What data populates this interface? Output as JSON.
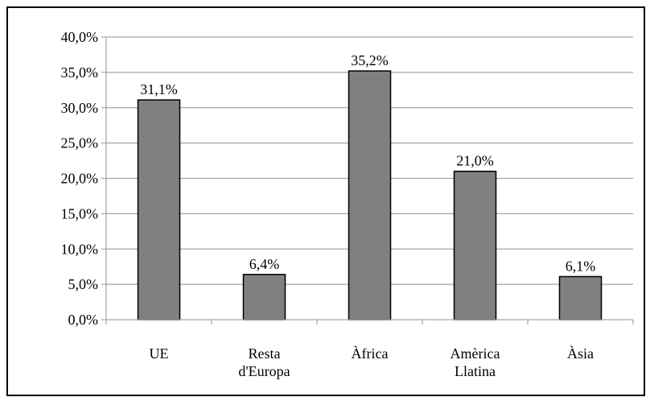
{
  "chart_data": {
    "type": "bar",
    "categories": [
      [
        "UE"
      ],
      [
        "Resta",
        "d'Europa"
      ],
      [
        "Àfrica"
      ],
      [
        "Amèrica",
        "Llatina"
      ],
      [
        "Àsia"
      ]
    ],
    "values": [
      31.1,
      6.4,
      35.2,
      21.0,
      6.1
    ],
    "value_labels": [
      "31,1%",
      "6,4%",
      "35,2%",
      "21,0%",
      "6,1%"
    ],
    "y_ticks": [
      "0,0%",
      "5,0%",
      "10,0%",
      "15,0%",
      "20,0%",
      "25,0%",
      "30,0%",
      "35,0%",
      "40,0%"
    ],
    "ylim": [
      0,
      40
    ],
    "y_step": 5,
    "grid": true,
    "title": "",
    "xlabel": "",
    "ylabel": "",
    "colors": {
      "bar_fill": "#808080",
      "bar_stroke": "#000000",
      "grid": "#a6a6a6",
      "axis": "#a6a6a6"
    }
  }
}
